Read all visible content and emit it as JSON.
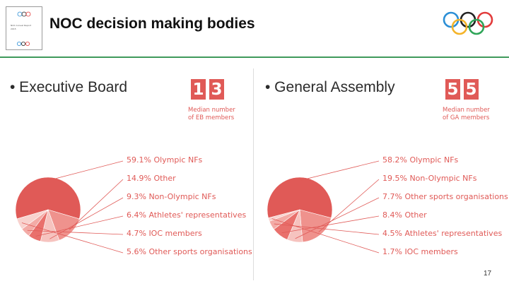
{
  "header": {
    "title": "NOC decision making bodies",
    "thumbnail_line1": "NOC Annual Report",
    "thumbnail_line2": "2015"
  },
  "left": {
    "bullet": "• Executive Board",
    "stat_digits": [
      "1",
      "3"
    ],
    "stat_caption_line1": "Median number",
    "stat_caption_line2": "of EB members"
  },
  "right": {
    "bullet": "• General Assembly",
    "stat_digits": [
      "5",
      "5"
    ],
    "stat_caption_line1": "Median number",
    "stat_caption_line2": "of GA members"
  },
  "page_number": "17",
  "colors": {
    "accent": "#e05a57",
    "rule": "#3f9a5b",
    "rings": [
      "#2c8fd6",
      "#f4b42a",
      "#222222",
      "#2fa558",
      "#e23b3b"
    ]
  },
  "chart_data": [
    {
      "type": "pie",
      "categories": [
        "Olympic NFs",
        "Other",
        "Non-Olympic NFs",
        "Athletes' representatives",
        "IOC members",
        "Other sports organisations"
      ],
      "values": [
        59.1,
        14.9,
        9.3,
        6.4,
        4.7,
        5.6
      ],
      "labels": [
        "59.1% Olympic NFs",
        "14.9% Other",
        "9.3% Non-Olympic NFs",
        "6.4% Athletes' representatives",
        "4.7% IOC members",
        "5.6% Other sports organisations"
      ]
    },
    {
      "type": "pie",
      "categories": [
        "Olympic NFs",
        "Non-Olympic NFs",
        "Other sports organisations",
        "Other",
        "Athletes' representatives",
        "IOC members"
      ],
      "values": [
        58.2,
        19.5,
        7.7,
        8.4,
        4.5,
        1.7
      ],
      "labels": [
        "58.2% Olympic NFs",
        "19.5% Non-Olympic NFs",
        "7.7% Other sports organisations",
        "8.4% Other",
        "4.5% Athletes' representatives",
        "1.7% IOC members"
      ]
    }
  ]
}
